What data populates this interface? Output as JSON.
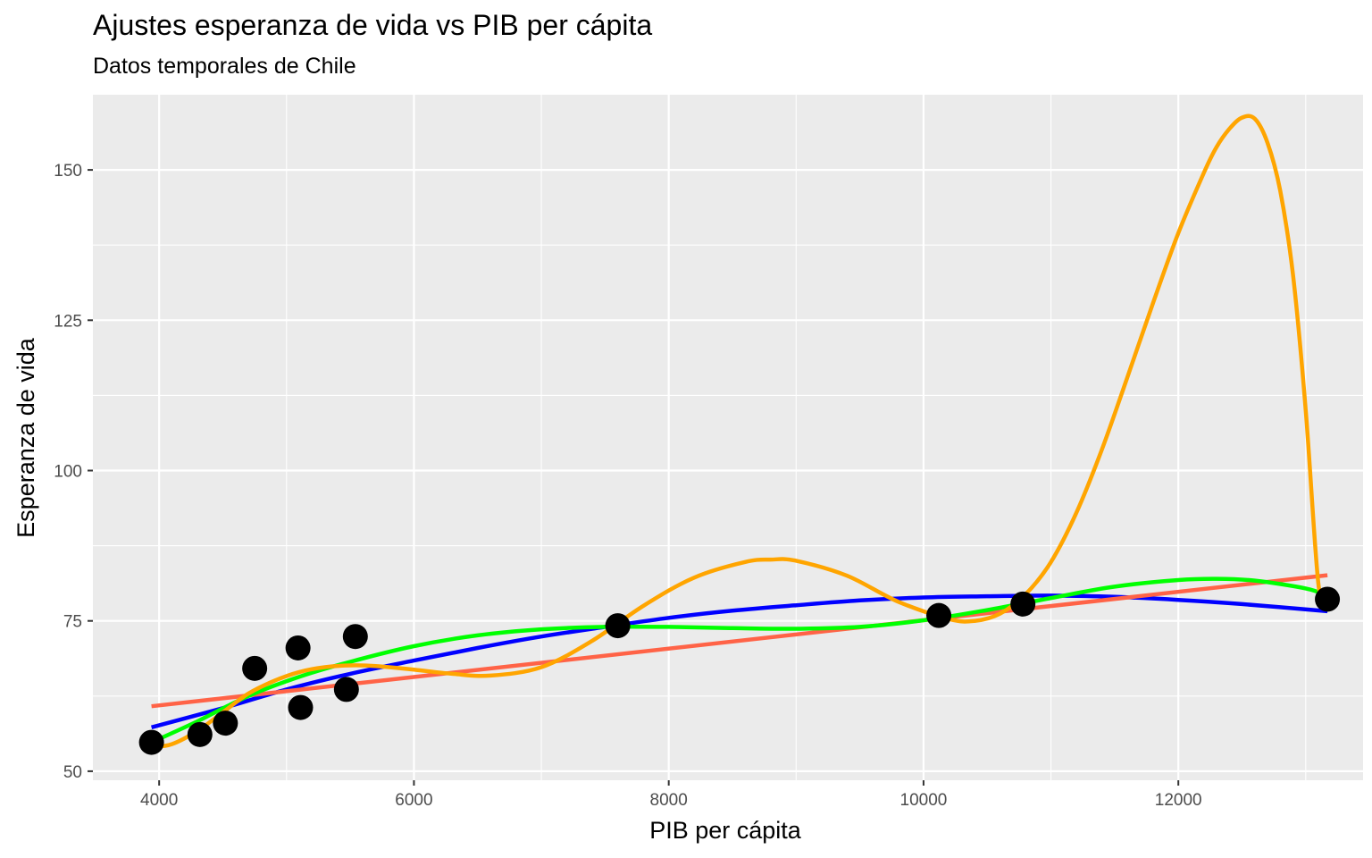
{
  "chart_data": {
    "type": "scatter",
    "title": "Ajustes esperanza de vida vs PIB per cápita",
    "subtitle": "Datos temporales de Chile",
    "xlabel": "PIB per cápita",
    "ylabel": "Esperanza de vida",
    "xlim": [
      3480,
      13450
    ],
    "ylim": [
      48.5,
      162.5
    ],
    "x_ticks": [
      4000,
      6000,
      8000,
      10000,
      12000
    ],
    "x_tick_labels": [
      "4000",
      "6000",
      "8000",
      "10000",
      "12000"
    ],
    "y_ticks": [
      50,
      75,
      100,
      125,
      150
    ],
    "y_tick_labels": [
      "50",
      "75",
      "100",
      "125",
      "150"
    ],
    "grid": true,
    "points": {
      "color": "#000000",
      "x": [
        3940,
        4320,
        4520,
        4750,
        5090,
        5110,
        5470,
        5540,
        7600,
        10120,
        10780,
        13170
      ],
      "y": [
        54.8,
        56.1,
        58.0,
        67.1,
        70.5,
        60.6,
        63.6,
        72.4,
        74.2,
        75.9,
        77.8,
        78.6
      ]
    },
    "series": [
      {
        "color": "#ff6347",
        "x": [
          3940,
          13170
        ],
        "y": [
          60.8,
          82.6
        ]
      },
      {
        "color": "#0000ff",
        "x": [
          3940,
          4500,
          5000,
          5500,
          6000,
          6500,
          7000,
          7500,
          8000,
          8500,
          9000,
          9500,
          10000,
          10500,
          11000,
          11500,
          12000,
          12500,
          13170
        ],
        "y": [
          57.3,
          60.5,
          63.6,
          66.2,
          68.4,
          70.5,
          72.4,
          74.0,
          75.5,
          76.7,
          77.6,
          78.4,
          78.9,
          79.1,
          79.2,
          79.0,
          78.5,
          77.8,
          76.6
        ]
      },
      {
        "color": "#00ff00",
        "x": [
          3940,
          4300,
          4700,
          5100,
          5500,
          6000,
          6500,
          7000,
          7500,
          8000,
          8500,
          9000,
          9500,
          10000,
          10500,
          11000,
          11500,
          12000,
          12300,
          12600,
          13000,
          13170
        ],
        "y": [
          54.8,
          58.3,
          62.5,
          65.7,
          68.2,
          70.8,
          72.6,
          73.6,
          74.0,
          74.0,
          73.8,
          73.7,
          74.0,
          75.1,
          76.8,
          78.8,
          80.7,
          81.8,
          82.0,
          81.7,
          80.4,
          79.2
        ]
      },
      {
        "color": "#ffa500",
        "x": [
          3940,
          4100,
          4300,
          4500,
          4700,
          4900,
          5100,
          5300,
          5500,
          5700,
          6000,
          6300,
          6600,
          7000,
          7400,
          7800,
          8200,
          8600,
          8800,
          9000,
          9400,
          9800,
          10200,
          10400,
          10600,
          10800,
          11000,
          11200,
          11400,
          11600,
          11800,
          12000,
          12200,
          12300,
          12400,
          12500,
          12600,
          12700,
          12800,
          12900,
          13000,
          13100,
          13170
        ],
        "y": [
          54.0,
          54.5,
          56.7,
          59.8,
          62.9,
          65.0,
          66.5,
          67.3,
          67.6,
          67.5,
          66.9,
          66.2,
          65.9,
          67.3,
          71.7,
          77.5,
          82.2,
          84.8,
          85.2,
          85.0,
          82.5,
          78.2,
          75.3,
          75.0,
          76.2,
          79.4,
          84.8,
          93.0,
          103.5,
          115.5,
          127.8,
          139.5,
          149.5,
          153.8,
          156.8,
          158.7,
          158.5,
          154.5,
          146.5,
          132.5,
          110.0,
          81.0,
          78.6
        ]
      }
    ]
  }
}
